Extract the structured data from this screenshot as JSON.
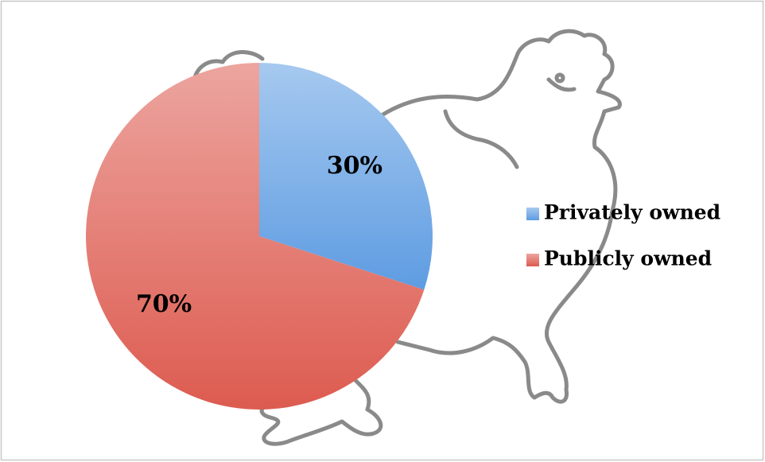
{
  "chart_data": {
    "type": "pie",
    "categories": [
      "Privately owned",
      "Publicly owned"
    ],
    "values": [
      30,
      70
    ],
    "value_labels": [
      "30%",
      "70%"
    ],
    "colors": [
      "#5e9ce2",
      "#dd5b50"
    ],
    "legend": "right"
  }
}
